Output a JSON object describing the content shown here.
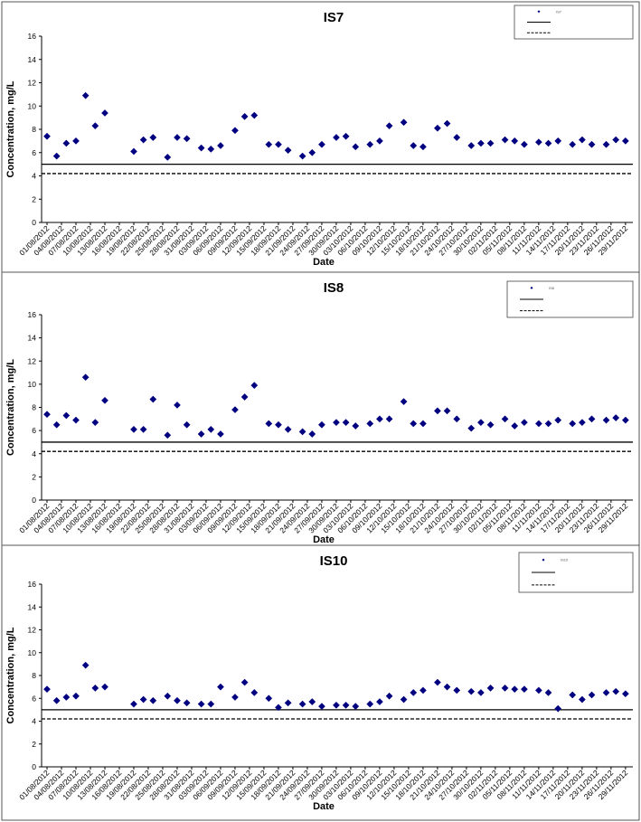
{
  "chart_data": [
    {
      "type": "scatter",
      "title": "IS7",
      "xlabel": "Date",
      "ylabel": "Concentration, mg/L",
      "ylim": [
        0,
        16
      ],
      "yticks": [
        "0",
        "2",
        "4",
        "6",
        "8",
        "10",
        "12",
        "14",
        "16"
      ],
      "grid": false,
      "legend_position": "top-right",
      "legend": [
        "IS7",
        "",
        ""
      ],
      "reference_lines": [
        {
          "style": "solid",
          "value": 5.0
        },
        {
          "style": "dashed",
          "value": 4.2
        }
      ],
      "x_tick_labels": [
        "01/08/2012",
        "04/08/2012",
        "07/08/2012",
        "10/08/2012",
        "13/08/2012",
        "16/08/2012",
        "19/08/2012",
        "22/08/2012",
        "25/08/2012",
        "28/08/2012",
        "31/08/2012",
        "03/09/2012",
        "06/09/2012",
        "09/09/2012",
        "12/09/2012",
        "15/09/2012",
        "18/09/2012",
        "21/09/2012",
        "24/09/2012",
        "27/09/2012",
        "30/09/2012",
        "03/10/2012",
        "06/10/2012",
        "09/10/2012",
        "12/10/2012",
        "15/10/2012",
        "18/10/2012",
        "21/10/2012",
        "24/10/2012",
        "27/10/2012",
        "30/10/2012",
        "02/11/2012",
        "05/11/2012",
        "08/11/2012",
        "11/11/2012",
        "14/11/2012",
        "17/11/2012",
        "20/11/2012",
        "23/11/2012",
        "26/11/2012",
        "29/11/2012"
      ],
      "points": [
        {
          "x": "01/08/2012",
          "y": 7.4
        },
        {
          "x": "03/08/2012",
          "y": 5.7
        },
        {
          "x": "05/08/2012",
          "y": 6.8
        },
        {
          "x": "07/08/2012",
          "y": 7.0
        },
        {
          "x": "09/08/2012",
          "y": 10.9
        },
        {
          "x": "11/08/2012",
          "y": 8.3
        },
        {
          "x": "13/08/2012",
          "y": 9.4
        },
        {
          "x": "19/08/2012",
          "y": 6.1
        },
        {
          "x": "21/08/2012",
          "y": 7.1
        },
        {
          "x": "23/08/2012",
          "y": 7.3
        },
        {
          "x": "26/08/2012",
          "y": 5.6
        },
        {
          "x": "28/08/2012",
          "y": 7.3
        },
        {
          "x": "30/08/2012",
          "y": 7.2
        },
        {
          "x": "02/09/2012",
          "y": 6.4
        },
        {
          "x": "04/09/2012",
          "y": 6.3
        },
        {
          "x": "06/09/2012",
          "y": 6.6
        },
        {
          "x": "09/09/2012",
          "y": 7.9
        },
        {
          "x": "11/09/2012",
          "y": 9.1
        },
        {
          "x": "13/09/2012",
          "y": 9.2
        },
        {
          "x": "16/09/2012",
          "y": 6.7
        },
        {
          "x": "18/09/2012",
          "y": 6.7
        },
        {
          "x": "20/09/2012",
          "y": 6.2
        },
        {
          "x": "23/09/2012",
          "y": 5.7
        },
        {
          "x": "25/09/2012",
          "y": 6.0
        },
        {
          "x": "27/09/2012",
          "y": 6.7
        },
        {
          "x": "30/09/2012",
          "y": 7.3
        },
        {
          "x": "02/10/2012",
          "y": 7.4
        },
        {
          "x": "04/10/2012",
          "y": 6.5
        },
        {
          "x": "07/10/2012",
          "y": 6.7
        },
        {
          "x": "09/10/2012",
          "y": 7.0
        },
        {
          "x": "11/10/2012",
          "y": 8.3
        },
        {
          "x": "14/10/2012",
          "y": 8.6
        },
        {
          "x": "16/10/2012",
          "y": 6.6
        },
        {
          "x": "18/10/2012",
          "y": 6.5
        },
        {
          "x": "21/10/2012",
          "y": 8.1
        },
        {
          "x": "23/10/2012",
          "y": 8.5
        },
        {
          "x": "25/10/2012",
          "y": 7.3
        },
        {
          "x": "28/10/2012",
          "y": 6.6
        },
        {
          "x": "30/10/2012",
          "y": 6.8
        },
        {
          "x": "01/11/2012",
          "y": 6.8
        },
        {
          "x": "04/11/2012",
          "y": 7.1
        },
        {
          "x": "06/11/2012",
          "y": 7.0
        },
        {
          "x": "08/11/2012",
          "y": 6.7
        },
        {
          "x": "11/11/2012",
          "y": 6.9
        },
        {
          "x": "13/11/2012",
          "y": 6.8
        },
        {
          "x": "15/11/2012",
          "y": 7.0
        },
        {
          "x": "18/11/2012",
          "y": 6.7
        },
        {
          "x": "20/11/2012",
          "y": 7.1
        },
        {
          "x": "22/11/2012",
          "y": 6.7
        },
        {
          "x": "25/11/2012",
          "y": 6.7
        },
        {
          "x": "27/11/2012",
          "y": 7.1
        },
        {
          "x": "29/11/2012",
          "y": 7.0
        }
      ]
    },
    {
      "type": "scatter",
      "title": "IS8",
      "xlabel": "Date",
      "ylabel": "Concentration, mg/L",
      "ylim": [
        0,
        16
      ],
      "yticks": [
        "0",
        "2",
        "4",
        "6",
        "8",
        "10",
        "12",
        "14",
        "16"
      ],
      "grid": false,
      "legend_position": "top-right",
      "legend": [
        "IS8",
        "",
        ""
      ],
      "reference_lines": [
        {
          "style": "solid",
          "value": 5.0
        },
        {
          "style": "dashed",
          "value": 4.2
        }
      ],
      "x_tick_labels": [
        "01/08/2012",
        "04/08/2012",
        "07/08/2012",
        "10/08/2012",
        "13/08/2012",
        "16/08/2012",
        "19/08/2012",
        "22/08/2012",
        "25/08/2012",
        "28/08/2012",
        "31/08/2012",
        "03/09/2012",
        "06/09/2012",
        "09/09/2012",
        "12/09/2012",
        "15/09/2012",
        "18/09/2012",
        "21/09/2012",
        "24/09/2012",
        "27/09/2012",
        "30/09/2012",
        "03/10/2012",
        "06/10/2012",
        "09/10/2012",
        "12/10/2012",
        "15/10/2012",
        "18/10/2012",
        "21/10/2012",
        "24/10/2012",
        "27/10/2012",
        "30/10/2012",
        "02/11/2012",
        "05/11/2012",
        "08/11/2012",
        "11/11/2012",
        "14/11/2012",
        "17/11/2012",
        "20/11/2012",
        "23/11/2012",
        "26/11/2012",
        "29/11/2012"
      ],
      "points": [
        {
          "x": "01/08/2012",
          "y": 7.4
        },
        {
          "x": "03/08/2012",
          "y": 6.5
        },
        {
          "x": "05/08/2012",
          "y": 7.3
        },
        {
          "x": "07/08/2012",
          "y": 6.9
        },
        {
          "x": "09/08/2012",
          "y": 10.6
        },
        {
          "x": "11/08/2012",
          "y": 6.7
        },
        {
          "x": "13/08/2012",
          "y": 8.6
        },
        {
          "x": "19/08/2012",
          "y": 6.1
        },
        {
          "x": "21/08/2012",
          "y": 6.1
        },
        {
          "x": "23/08/2012",
          "y": 8.7
        },
        {
          "x": "26/08/2012",
          "y": 5.6
        },
        {
          "x": "28/08/2012",
          "y": 8.2
        },
        {
          "x": "30/08/2012",
          "y": 6.5
        },
        {
          "x": "02/09/2012",
          "y": 5.7
        },
        {
          "x": "04/09/2012",
          "y": 6.1
        },
        {
          "x": "06/09/2012",
          "y": 5.7
        },
        {
          "x": "09/09/2012",
          "y": 7.8
        },
        {
          "x": "11/09/2012",
          "y": 8.9
        },
        {
          "x": "13/09/2012",
          "y": 9.9
        },
        {
          "x": "16/09/2012",
          "y": 6.6
        },
        {
          "x": "18/09/2012",
          "y": 6.5
        },
        {
          "x": "20/09/2012",
          "y": 6.1
        },
        {
          "x": "23/09/2012",
          "y": 5.9
        },
        {
          "x": "25/09/2012",
          "y": 5.7
        },
        {
          "x": "27/09/2012",
          "y": 6.5
        },
        {
          "x": "30/09/2012",
          "y": 6.7
        },
        {
          "x": "02/10/2012",
          "y": 6.7
        },
        {
          "x": "04/10/2012",
          "y": 6.4
        },
        {
          "x": "07/10/2012",
          "y": 6.6
        },
        {
          "x": "09/10/2012",
          "y": 7.0
        },
        {
          "x": "11/10/2012",
          "y": 7.0
        },
        {
          "x": "14/10/2012",
          "y": 8.5
        },
        {
          "x": "16/10/2012",
          "y": 6.6
        },
        {
          "x": "18/10/2012",
          "y": 6.6
        },
        {
          "x": "21/10/2012",
          "y": 7.7
        },
        {
          "x": "23/10/2012",
          "y": 7.7
        },
        {
          "x": "25/10/2012",
          "y": 7.0
        },
        {
          "x": "28/10/2012",
          "y": 6.2
        },
        {
          "x": "30/10/2012",
          "y": 6.7
        },
        {
          "x": "01/11/2012",
          "y": 6.5
        },
        {
          "x": "04/11/2012",
          "y": 7.0
        },
        {
          "x": "06/11/2012",
          "y": 6.4
        },
        {
          "x": "08/11/2012",
          "y": 6.7
        },
        {
          "x": "11/11/2012",
          "y": 6.6
        },
        {
          "x": "13/11/2012",
          "y": 6.6
        },
        {
          "x": "15/11/2012",
          "y": 6.9
        },
        {
          "x": "18/11/2012",
          "y": 6.6
        },
        {
          "x": "20/11/2012",
          "y": 6.7
        },
        {
          "x": "22/11/2012",
          "y": 7.0
        },
        {
          "x": "25/11/2012",
          "y": 6.9
        },
        {
          "x": "27/11/2012",
          "y": 7.1
        },
        {
          "x": "29/11/2012",
          "y": 6.9
        }
      ]
    },
    {
      "type": "scatter",
      "title": "IS10",
      "xlabel": "Date",
      "ylabel": "Concentration, mg/L",
      "ylim": [
        0,
        16
      ],
      "yticks": [
        "0",
        "2",
        "4",
        "6",
        "8",
        "10",
        "12",
        "14",
        "16"
      ],
      "grid": false,
      "legend_position": "top-right",
      "legend": [
        "IS10",
        "",
        ""
      ],
      "reference_lines": [
        {
          "style": "solid",
          "value": 5.0
        },
        {
          "style": "dashed",
          "value": 4.2
        }
      ],
      "x_tick_labels": [
        "01/08/2012",
        "04/08/2012",
        "07/08/2012",
        "10/08/2012",
        "13/08/2012",
        "16/08/2012",
        "19/08/2012",
        "22/08/2012",
        "25/08/2012",
        "28/08/2012",
        "31/08/2012",
        "03/09/2012",
        "06/09/2012",
        "09/09/2012",
        "12/09/2012",
        "15/09/2012",
        "18/09/2012",
        "21/09/2012",
        "24/09/2012",
        "27/09/2012",
        "30/09/2012",
        "03/10/2012",
        "06/10/2012",
        "09/10/2012",
        "12/10/2012",
        "15/10/2012",
        "18/10/2012",
        "21/10/2012",
        "24/10/2012",
        "27/10/2012",
        "30/10/2012",
        "02/11/2012",
        "05/11/2012",
        "08/11/2012",
        "11/11/2012",
        "14/11/2012",
        "17/11/2012",
        "20/11/2012",
        "23/11/2012",
        "26/11/2012",
        "29/11/2012"
      ],
      "points": [
        {
          "x": "01/08/2012",
          "y": 6.8
        },
        {
          "x": "03/08/2012",
          "y": 5.8
        },
        {
          "x": "05/08/2012",
          "y": 6.1
        },
        {
          "x": "07/08/2012",
          "y": 6.2
        },
        {
          "x": "09/08/2012",
          "y": 8.9
        },
        {
          "x": "11/08/2012",
          "y": 6.9
        },
        {
          "x": "13/08/2012",
          "y": 7.0
        },
        {
          "x": "19/08/2012",
          "y": 5.5
        },
        {
          "x": "21/08/2012",
          "y": 5.9
        },
        {
          "x": "23/08/2012",
          "y": 5.8
        },
        {
          "x": "26/08/2012",
          "y": 6.2
        },
        {
          "x": "28/08/2012",
          "y": 5.8
        },
        {
          "x": "30/08/2012",
          "y": 5.6
        },
        {
          "x": "02/09/2012",
          "y": 5.5
        },
        {
          "x": "04/09/2012",
          "y": 5.5
        },
        {
          "x": "06/09/2012",
          "y": 7.0
        },
        {
          "x": "09/09/2012",
          "y": 6.1
        },
        {
          "x": "11/09/2012",
          "y": 7.4
        },
        {
          "x": "13/09/2012",
          "y": 6.5
        },
        {
          "x": "16/09/2012",
          "y": 6.0
        },
        {
          "x": "18/09/2012",
          "y": 5.2
        },
        {
          "x": "20/09/2012",
          "y": 5.6
        },
        {
          "x": "23/09/2012",
          "y": 5.5
        },
        {
          "x": "25/09/2012",
          "y": 5.7
        },
        {
          "x": "27/09/2012",
          "y": 5.3
        },
        {
          "x": "30/09/2012",
          "y": 5.4
        },
        {
          "x": "02/10/2012",
          "y": 5.4
        },
        {
          "x": "04/10/2012",
          "y": 5.3
        },
        {
          "x": "07/10/2012",
          "y": 5.5
        },
        {
          "x": "09/10/2012",
          "y": 5.7
        },
        {
          "x": "11/10/2012",
          "y": 6.2
        },
        {
          "x": "14/10/2012",
          "y": 5.9
        },
        {
          "x": "16/10/2012",
          "y": 6.5
        },
        {
          "x": "18/10/2012",
          "y": 6.7
        },
        {
          "x": "21/10/2012",
          "y": 7.4
        },
        {
          "x": "23/10/2012",
          "y": 7.0
        },
        {
          "x": "25/10/2012",
          "y": 6.7
        },
        {
          "x": "28/10/2012",
          "y": 6.6
        },
        {
          "x": "30/10/2012",
          "y": 6.5
        },
        {
          "x": "01/11/2012",
          "y": 6.9
        },
        {
          "x": "04/11/2012",
          "y": 6.9
        },
        {
          "x": "06/11/2012",
          "y": 6.8
        },
        {
          "x": "08/11/2012",
          "y": 6.8
        },
        {
          "x": "11/11/2012",
          "y": 6.7
        },
        {
          "x": "13/11/2012",
          "y": 6.5
        },
        {
          "x": "15/11/2012",
          "y": 5.1
        },
        {
          "x": "18/11/2012",
          "y": 6.3
        },
        {
          "x": "20/11/2012",
          "y": 5.9
        },
        {
          "x": "22/11/2012",
          "y": 6.3
        },
        {
          "x": "25/11/2012",
          "y": 6.5
        },
        {
          "x": "27/11/2012",
          "y": 6.6
        },
        {
          "x": "29/11/2012",
          "y": 6.4
        }
      ]
    }
  ],
  "colors": {
    "marker": "#000080",
    "axis": "#000000",
    "panel_border": "#555555",
    "background": "#ffffff"
  }
}
